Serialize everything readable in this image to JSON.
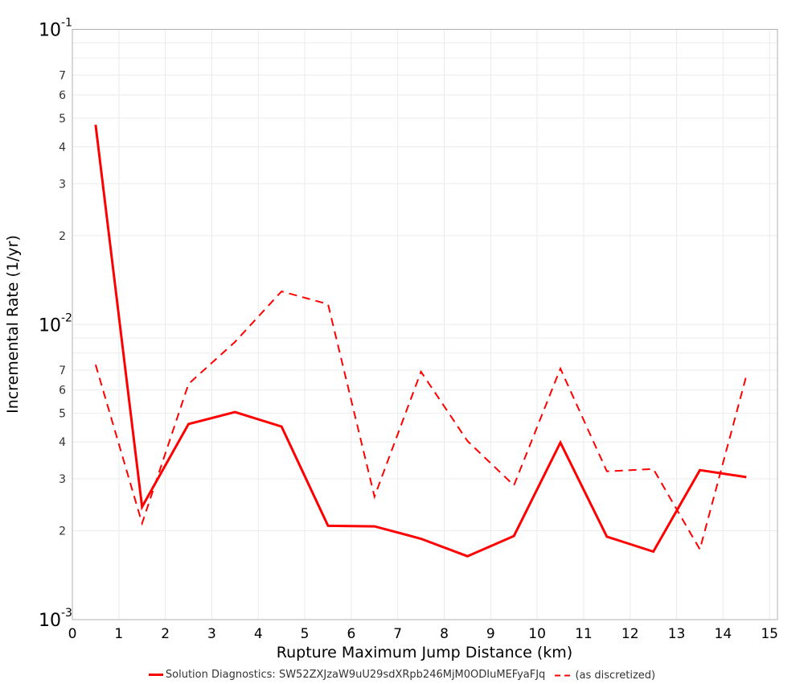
{
  "chart_data": {
    "type": "line",
    "title": "",
    "xlabel": "Rupture Maximum Jump Distance (km)",
    "ylabel": "Incremental Rate (1/yr)",
    "xlim": [
      0,
      15.17
    ],
    "ylim": [
      0.001,
      0.1
    ],
    "yscale": "log",
    "grid": true,
    "legend_position": "bottom",
    "x_ticks": [
      0,
      1,
      2,
      3,
      4,
      5,
      6,
      7,
      8,
      9,
      10,
      11,
      12,
      13,
      14,
      15
    ],
    "y_major_ticks": [
      {
        "value": 0.1,
        "base": "10",
        "exp": "-1"
      },
      {
        "value": 0.01,
        "base": "10",
        "exp": "-2"
      },
      {
        "value": 0.001,
        "base": "10",
        "exp": "-3"
      }
    ],
    "y_minor_labels": [
      "2",
      "3",
      "4",
      "5",
      "6",
      "7"
    ],
    "x": [
      0.5,
      1.5,
      2.5,
      3.5,
      4.5,
      5.5,
      6.5,
      7.5,
      8.5,
      9.5,
      10.5,
      11.5,
      12.5,
      13.5,
      14.5
    ],
    "series": [
      {
        "name": "Solution Diagnostics: SW52ZXJzaW9uU29sdXRpb246MjM0ODIuMEFyaFJq",
        "style": "solid",
        "color": "#ff0000",
        "values": [
          0.0475,
          0.00241,
          0.0046,
          0.00505,
          0.00451,
          0.00208,
          0.00207,
          0.00188,
          0.00164,
          0.00192,
          0.00398,
          0.00191,
          0.0017,
          0.00321,
          0.00304
        ]
      },
      {
        "name": "(as discretized)",
        "style": "dashed",
        "color": "#ff0000",
        "values": [
          0.00731,
          0.00212,
          0.00629,
          0.00873,
          0.01295,
          0.01172,
          0.00261,
          0.00692,
          0.00403,
          0.00285,
          0.00709,
          0.00318,
          0.00324,
          0.00173,
          0.0067
        ]
      }
    ]
  },
  "axes": {
    "xlabel": "Rupture Maximum Jump Distance (km)",
    "ylabel": "Incremental Rate (1/yr)"
  },
  "legend": {
    "items": [
      {
        "label": "Solution Diagnostics: SW52ZXJzaW9uU29sdXRpb246MjM0ODIuMEFyaFJq",
        "style": "solid"
      },
      {
        "label": "(as discretized)",
        "style": "dashed"
      }
    ]
  },
  "colors": {
    "series": "#ff0000",
    "grid": "#ebebeb",
    "axis": "#b0b0b0",
    "background": "#ffffff"
  }
}
